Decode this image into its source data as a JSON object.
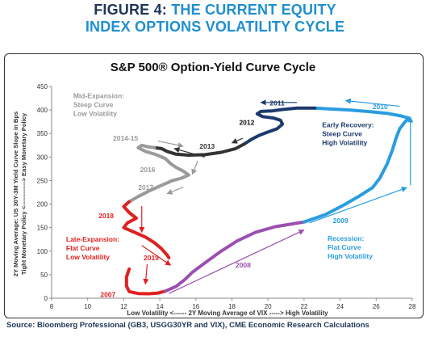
{
  "figure": {
    "label": "FIGURE 4:",
    "title_line1_rest": "THE CURRENT EQUITY",
    "title_line2": "INDEX OPTIONS VOLATILITY CYCLE"
  },
  "source": "Source: Bloomberg Professional (GB3, USGG30YR and VIX), CME Economic Research Calculations",
  "chart_data": {
    "type": "line",
    "title": "S&P 500® Option-Yield Curve Cycle",
    "xlabel": "Low Volatility <------ 2Y Moving Average of VIX -----> High Volatility",
    "ylabel_line1": "2Y Moving Average: US 30Y-3M Yield Curve Slope in Bps",
    "ylabel_line2": "Tight Monetary Policy <------------> Easy Monetary Policy",
    "xlim": [
      8,
      28
    ],
    "ylim": [
      0,
      450
    ],
    "x_ticks": [
      "8",
      "10",
      "12",
      "14",
      "16",
      "18",
      "20",
      "22",
      "24",
      "26",
      "28"
    ],
    "y_ticks": [
      "0",
      "50",
      "100",
      "150",
      "200",
      "250",
      "300",
      "350",
      "400",
      "450"
    ],
    "grid": false,
    "colors": {
      "late_expansion": "#e02020",
      "recession_purple": "#9b4fb0",
      "recession_blue": "#2a9de0",
      "early_recovery": "#1d3a6e",
      "mid_expansion_dark": "#333333",
      "mid_expansion_gray": "#9a9a9a"
    },
    "series": [
      {
        "segment": "2007",
        "color": "#e02020",
        "points": [
          [
            12.3,
            62
          ],
          [
            12.15,
            45
          ],
          [
            12.15,
            26
          ],
          [
            12.3,
            14
          ],
          [
            12.8,
            10
          ],
          [
            13.4,
            9.5
          ],
          [
            13.9,
            11
          ],
          [
            14.3,
            15
          ]
        ]
      },
      {
        "segment": "2008a",
        "color": "#9b4fb0",
        "points": [
          [
            14.3,
            15
          ],
          [
            14.9,
            25
          ],
          [
            15.4,
            40
          ],
          [
            15.8,
            55
          ],
          [
            16.5,
            75
          ],
          [
            17.4,
            100
          ],
          [
            18.3,
            122
          ],
          [
            19.3,
            140
          ],
          [
            20.4,
            152
          ],
          [
            22.0,
            162
          ]
        ]
      },
      {
        "segment": "2009",
        "color": "#2a9de0",
        "points": [
          [
            22.0,
            162
          ],
          [
            23.2,
            178
          ],
          [
            24.2,
            198
          ],
          [
            25.1,
            218
          ],
          [
            25.8,
            235
          ],
          [
            26.2,
            255
          ],
          [
            26.6,
            285
          ],
          [
            26.9,
            315
          ],
          [
            27.1,
            340
          ],
          [
            27.3,
            360
          ],
          [
            27.6,
            375
          ],
          [
            27.8,
            383
          ]
        ]
      },
      {
        "segment": "2010",
        "color": "#2a9de0",
        "points": [
          [
            27.8,
            383
          ],
          [
            27.3,
            388
          ],
          [
            26.6,
            393
          ],
          [
            25.5,
            397
          ],
          [
            24.5,
            400
          ],
          [
            23.5,
            402
          ],
          [
            22.6,
            404
          ]
        ]
      },
      {
        "segment": "2011",
        "color": "#1d3a6e",
        "points": [
          [
            22.6,
            404
          ],
          [
            21.6,
            404
          ],
          [
            20.8,
            401
          ],
          [
            20.2,
            398
          ],
          [
            19.6,
            397
          ],
          [
            19.4,
            392
          ],
          [
            19.7,
            386
          ],
          [
            20.3,
            383
          ],
          [
            20.7,
            378
          ],
          [
            20.8,
            370
          ],
          [
            20.5,
            360
          ],
          [
            20.2,
            356
          ]
        ]
      },
      {
        "segment": "2012",
        "color": "#1d3a6e",
        "points": [
          [
            20.2,
            356
          ],
          [
            19.9,
            352
          ],
          [
            19.5,
            346
          ],
          [
            19.1,
            338
          ],
          [
            18.7,
            328
          ]
        ]
      },
      {
        "segment": "2013",
        "color": "#333333",
        "points": [
          [
            18.7,
            328
          ],
          [
            18.2,
            318
          ],
          [
            17.4,
            310
          ],
          [
            16.5,
            305
          ],
          [
            15.6,
            304
          ],
          [
            14.9,
            306
          ],
          [
            14.4,
            312
          ],
          [
            14.1,
            318
          ],
          [
            13.7,
            320
          ]
        ]
      },
      {
        "segment": "2014-15",
        "color": "#9a9a9a",
        "points": [
          [
            13.7,
            320
          ],
          [
            13.3,
            322
          ],
          [
            13.0,
            325
          ],
          [
            12.8,
            320
          ],
          [
            13.2,
            312
          ],
          [
            13.8,
            305
          ],
          [
            14.3,
            297
          ],
          [
            14.6,
            286
          ]
        ]
      },
      {
        "segment": "2016",
        "color": "#9a9a9a",
        "points": [
          [
            14.6,
            286
          ],
          [
            14.9,
            278
          ],
          [
            15.3,
            270
          ],
          [
            15.6,
            262
          ],
          [
            15.2,
            255
          ],
          [
            14.7,
            250
          ]
        ]
      },
      {
        "segment": "2017",
        "color": "#9a9a9a",
        "points": [
          [
            14.7,
            250
          ],
          [
            14.1,
            240
          ],
          [
            13.4,
            228
          ],
          [
            12.8,
            216
          ],
          [
            12.3,
            205
          ]
        ]
      },
      {
        "segment": "2018",
        "color": "#e02020",
        "points": [
          [
            12.3,
            205
          ],
          [
            12.0,
            195
          ],
          [
            12.3,
            182
          ],
          [
            12.7,
            170
          ],
          [
            12.2,
            160
          ],
          [
            12.0,
            150
          ],
          [
            12.6,
            140
          ],
          [
            13.2,
            130
          ],
          [
            13.7,
            118
          ],
          [
            14.1,
            105
          ],
          [
            14.4,
            92
          ],
          [
            14.5,
            86
          ]
        ]
      }
    ],
    "arrows": [
      {
        "label": "2008",
        "from": [
          14.5,
          10
        ],
        "to": [
          22.0,
          145
        ],
        "color": "#9b4fb0"
      },
      {
        "label": "2009",
        "from": [
          22.3,
          160
        ],
        "to": [
          27.7,
          235
        ],
        "color": "#2a9de0"
      },
      {
        "label": "2010",
        "from": [
          27.9,
          240
        ],
        "to": [
          27.9,
          385
        ],
        "color": "#2a9de0"
      },
      {
        "label": "2010b",
        "from": [
          27.3,
          408
        ],
        "to": [
          24.3,
          420
        ],
        "color": "#2a9de0"
      },
      {
        "label": "2011",
        "from": [
          21.6,
          416
        ],
        "to": [
          19.6,
          416
        ],
        "color": "#1d3a6e"
      },
      {
        "label": "2012",
        "from": [
          18.6,
          340
        ],
        "to": [
          18.0,
          330
        ],
        "color": "#333333"
      },
      {
        "label": "2013",
        "from": [
          16.5,
          300
        ],
        "to": [
          14.8,
          318
        ],
        "color": "#333333"
      },
      {
        "label": "2014-15",
        "from": [
          13.9,
          334
        ],
        "to": [
          15.3,
          323
        ],
        "color": "#9a9a9a"
      },
      {
        "label": "2016",
        "from": [
          16.1,
          292
        ],
        "to": [
          15.8,
          263
        ],
        "color": "#9a9a9a"
      },
      {
        "label": "2017",
        "from": [
          15.3,
          236
        ],
        "to": [
          14.4,
          222
        ],
        "color": "#9a9a9a"
      },
      {
        "label": "2018",
        "from": [
          13.0,
          196
        ],
        "to": [
          13.0,
          140
        ],
        "color": "#e02020"
      },
      {
        "label": "2019",
        "from": [
          13.0,
          112
        ],
        "to": [
          14.6,
          70
        ],
        "color": "#e02020"
      },
      {
        "label": "2007",
        "from": [
          13.3,
          72
        ],
        "to": [
          13.2,
          30
        ],
        "color": "#e02020"
      }
    ],
    "annotations": [
      {
        "text": "2007",
        "x": 10.7,
        "y": 3,
        "color": "#e02020"
      },
      {
        "text": "2008",
        "x": 18.2,
        "y": 65,
        "color": "#9b4fb0"
      },
      {
        "text": "2009",
        "x": 23.6,
        "y": 160,
        "color": "#2a9de0"
      },
      {
        "text": "2010",
        "x": 25.8,
        "y": 402,
        "color": "#2a9de0"
      },
      {
        "text": "2011",
        "x": 20.1,
        "y": 410,
        "color": "#1d3a6e"
      },
      {
        "text": "2012",
        "x": 18.4,
        "y": 368,
        "color": "#111111"
      },
      {
        "text": "2013",
        "x": 16.2,
        "y": 318,
        "color": "#333333"
      },
      {
        "text": "2014-15",
        "x": 11.4,
        "y": 335,
        "color": "#9a9a9a"
      },
      {
        "text": "2016",
        "x": 12.9,
        "y": 268,
        "color": "#9a9a9a"
      },
      {
        "text": "2017",
        "x": 12.8,
        "y": 230,
        "color": "#9a9a9a"
      },
      {
        "text": "2018",
        "x": 10.6,
        "y": 170,
        "color": "#e02020"
      },
      {
        "text": "2019",
        "x": 13.1,
        "y": 81,
        "color": "#e02020"
      }
    ],
    "phase_labels": [
      {
        "lines": [
          "Mid-Expansion:",
          "Steep Curve",
          "Low Volatility"
        ],
        "x": 9.2,
        "y": 425,
        "color": "#9a9a9a"
      },
      {
        "lines": [
          "Early Recovery:",
          "Steep Curve",
          "High Volatility"
        ],
        "x": 23.0,
        "y": 363,
        "color": "#1d3a6e"
      },
      {
        "lines": [
          "Late-Expansion:",
          "Flat Curve",
          "Low Volatility"
        ],
        "x": 8.8,
        "y": 120,
        "color": "#e02020"
      },
      {
        "lines": [
          "Recession:",
          "Flat Curve",
          "High Volatility"
        ],
        "x": 23.3,
        "y": 122,
        "color": "#2a9de0"
      }
    ]
  }
}
